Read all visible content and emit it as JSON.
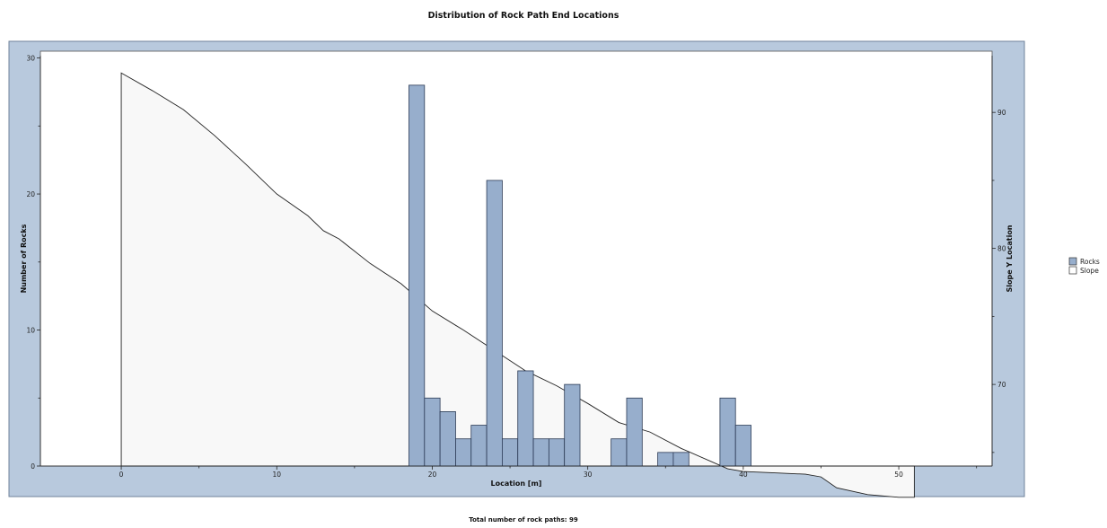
{
  "chart_data": {
    "type": "bar",
    "title": "Distribution of Rock Path End Locations",
    "xlabel": "Location [m]",
    "ylabel": "Number of Rocks",
    "y2label": "Slope Y Location",
    "xlim": [
      -5.2,
      56
    ],
    "ylim": [
      0,
      30.5
    ],
    "y2lim": [
      64,
      94.5
    ],
    "x_ticks": [
      0,
      10,
      20,
      30,
      40,
      50
    ],
    "y_ticks": [
      0,
      10,
      20,
      30
    ],
    "y2_ticks": [
      70,
      80,
      90
    ],
    "grid": false,
    "legend_position": "right",
    "bar_color": "#97AECC",
    "frame_color": "#B8C9DD",
    "series": [
      {
        "name": "Rocks",
        "bin_width": 1.0,
        "x": [
          19,
          20,
          21,
          22,
          23,
          24,
          25,
          26,
          27,
          28,
          29,
          32,
          33,
          35,
          36,
          39,
          40
        ],
        "values": [
          28,
          5,
          4,
          2,
          3,
          21,
          2,
          7,
          2,
          2,
          6,
          2,
          5,
          1,
          1,
          5,
          3
        ]
      },
      {
        "name": "Slope",
        "type": "area",
        "axis": "right",
        "x": [
          0,
          2,
          4,
          6,
          8,
          10,
          12,
          13,
          14,
          16,
          18,
          20,
          22,
          24,
          26,
          28,
          30,
          32,
          34,
          36,
          38,
          39,
          40,
          42,
          44,
          45,
          46,
          48,
          50,
          51
        ],
        "values": [
          92.9,
          91.6,
          90.2,
          88.3,
          86.2,
          84.0,
          82.4,
          81.3,
          80.7,
          78.9,
          77.4,
          75.4,
          74.0,
          72.5,
          71.0,
          69.9,
          68.6,
          67.2,
          66.5,
          65.3,
          64.3,
          63.8,
          63.6,
          63.5,
          63.4,
          63.2,
          62.4,
          61.9,
          61.7,
          61.7
        ]
      }
    ],
    "footer": "Total number of rock paths:  99"
  }
}
